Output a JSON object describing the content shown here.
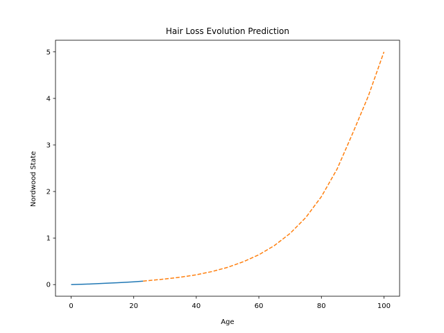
{
  "chart_data": {
    "type": "line",
    "title": "Hair Loss Evolution Prediction",
    "xlabel": "Age",
    "ylabel": "Nordwood State",
    "xlim": [
      -5,
      105
    ],
    "ylim": [
      -0.25,
      5.25
    ],
    "xticks": [
      0,
      20,
      40,
      60,
      80,
      100
    ],
    "yticks": [
      0,
      1,
      2,
      3,
      4,
      5
    ],
    "grid": false,
    "series": [
      {
        "style": "solid",
        "color": "#1f77b4",
        "x": [
          0,
          5,
          10,
          15,
          20,
          23
        ],
        "y": [
          0.0,
          0.01,
          0.025,
          0.04,
          0.06,
          0.075
        ]
      },
      {
        "style": "dashed",
        "color": "#ff7f0e",
        "x": [
          23,
          30,
          35,
          40,
          45,
          50,
          55,
          60,
          65,
          70,
          75,
          80,
          85,
          90,
          95,
          100
        ],
        "y": [
          0.075,
          0.12,
          0.16,
          0.21,
          0.28,
          0.37,
          0.49,
          0.64,
          0.84,
          1.1,
          1.44,
          1.89,
          2.48,
          3.25,
          4.05,
          5.0
        ]
      }
    ]
  }
}
